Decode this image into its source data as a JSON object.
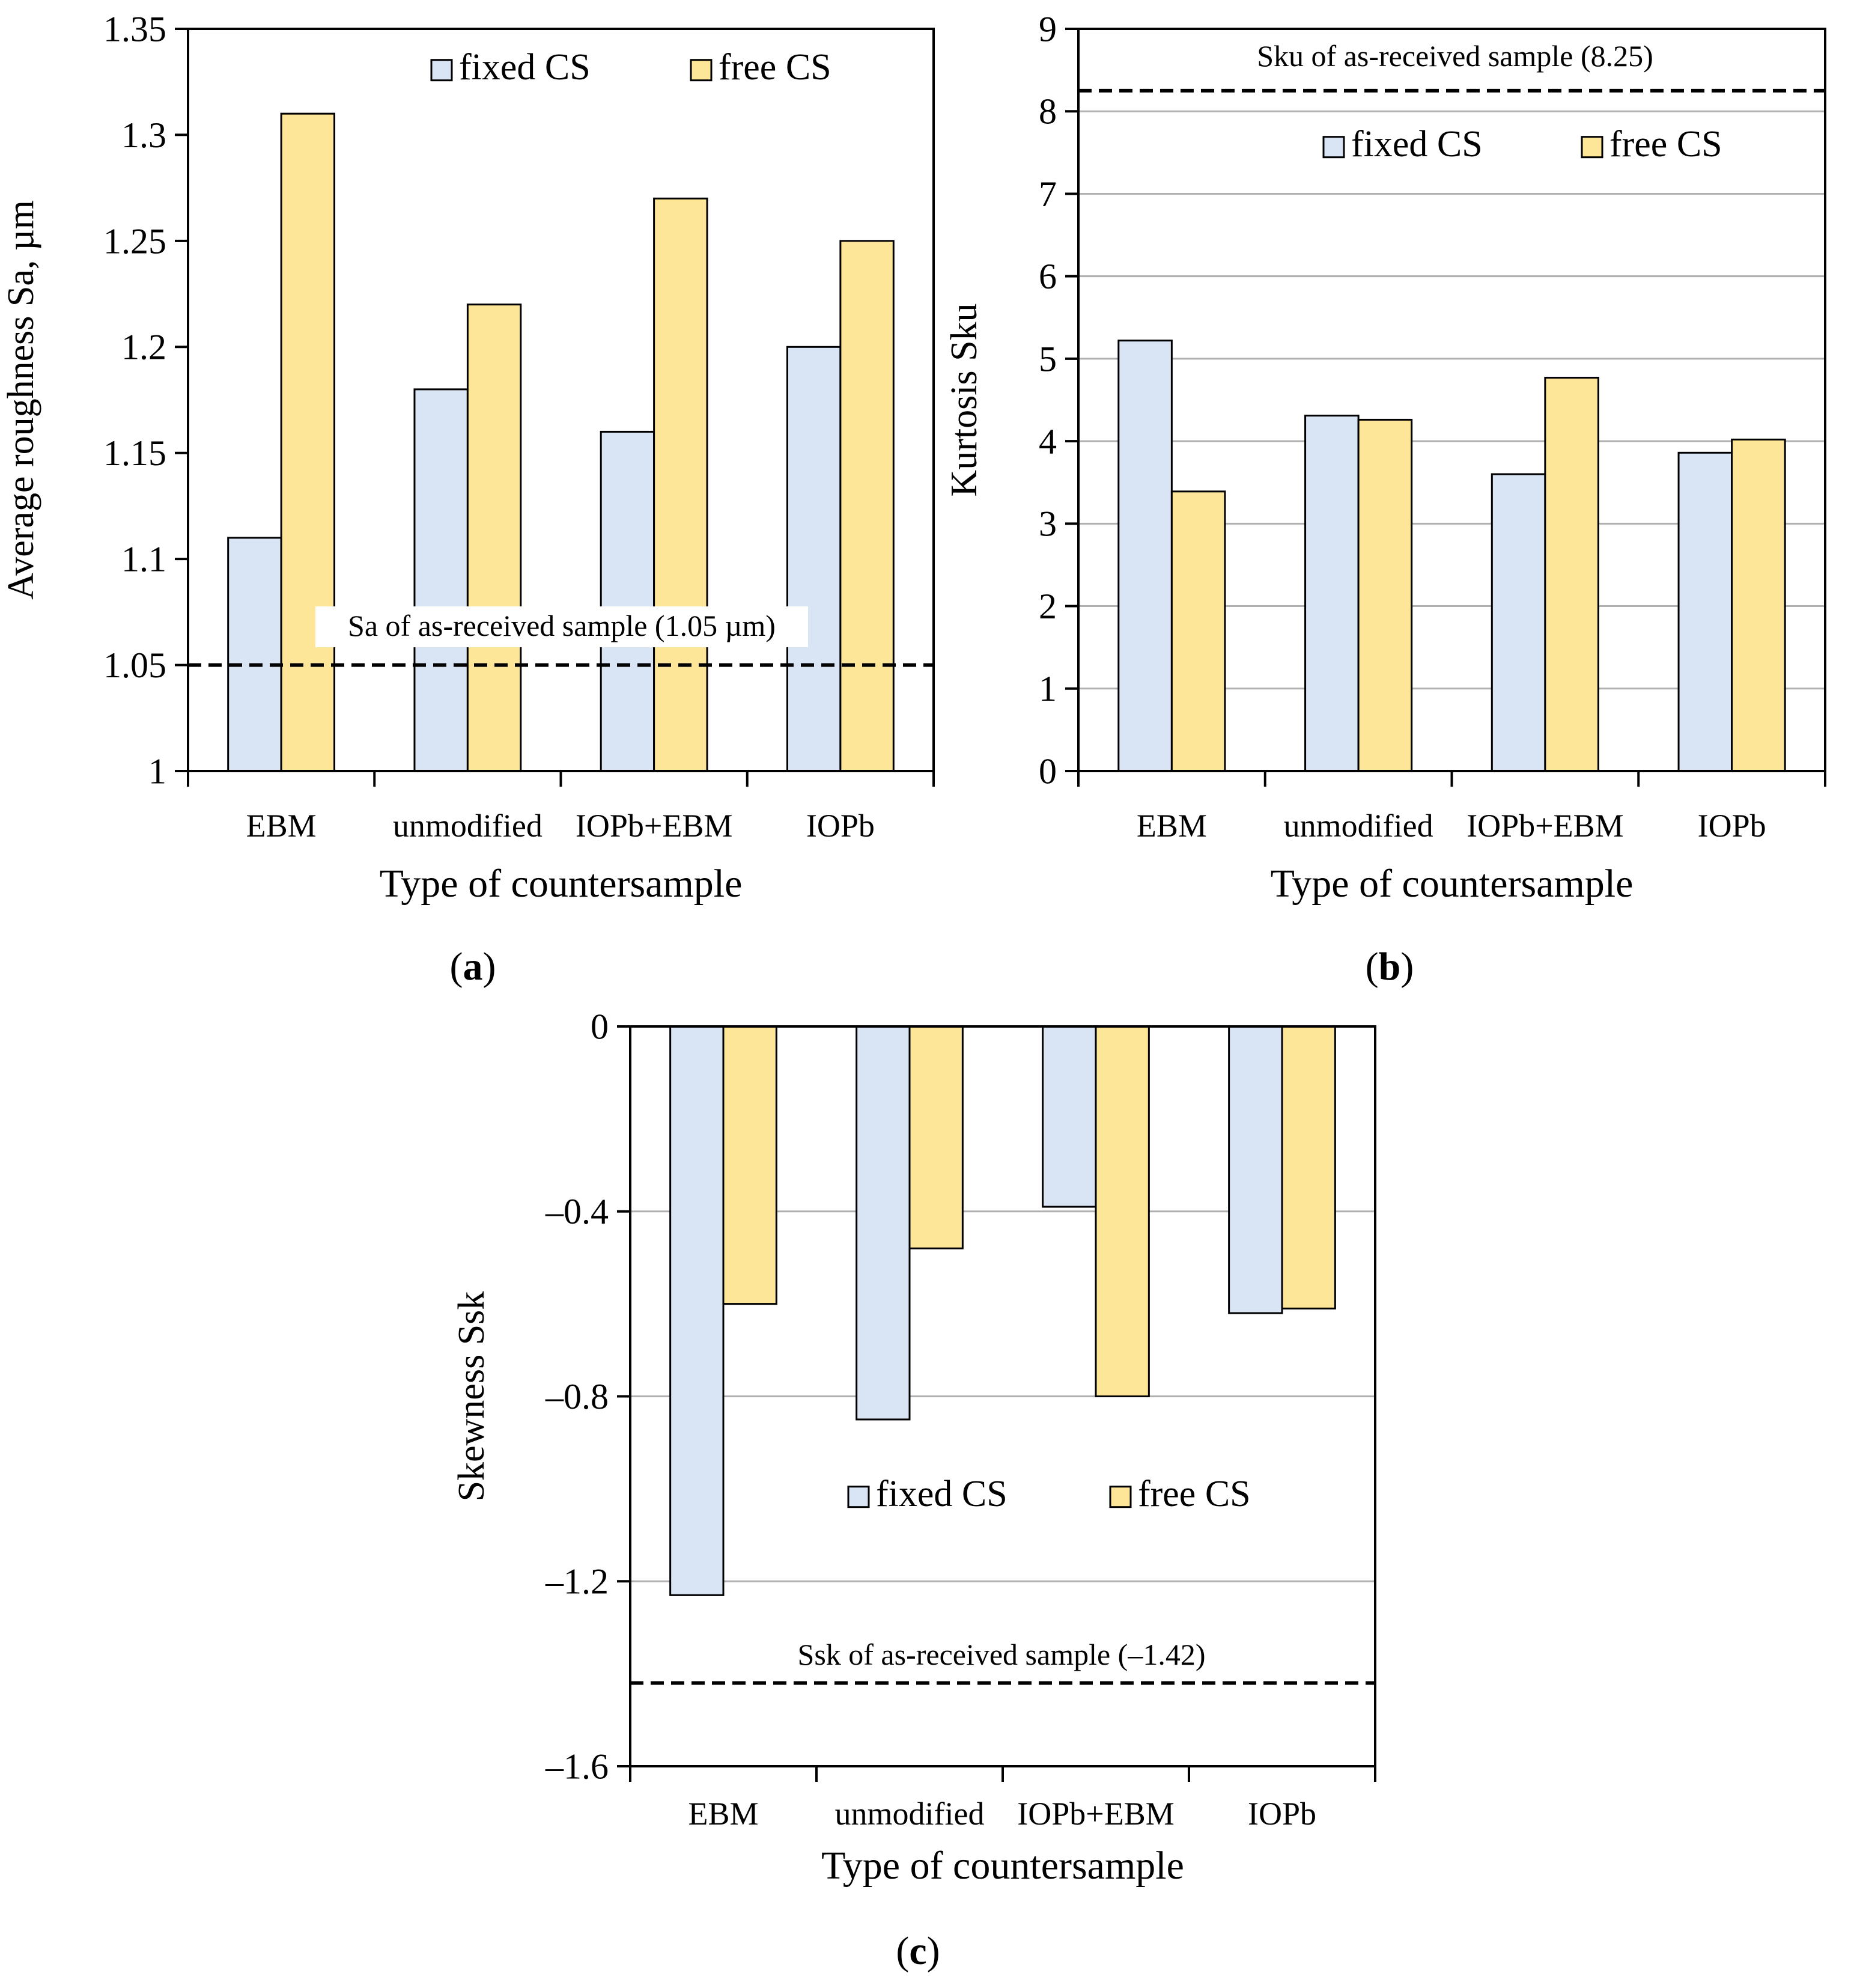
{
  "colors": {
    "fixed": "#d9e4f4",
    "free": "#fde698",
    "stroke": "#000000",
    "grid": "#b0b0b0"
  },
  "chart_data": [
    {
      "id": "a",
      "type": "bar",
      "panel_label": "a",
      "xlabel": "Type of countersample",
      "ylabel": "Average roughness Sa, µm",
      "categories": [
        "EBM",
        "unmodified",
        "IOPb+EBM",
        "IOPb"
      ],
      "series": [
        {
          "name": "fixed CS",
          "values": [
            1.11,
            1.18,
            1.16,
            1.2
          ]
        },
        {
          "name": "free CS",
          "values": [
            1.31,
            1.22,
            1.27,
            1.25
          ]
        }
      ],
      "ylim": [
        1,
        1.35
      ],
      "yticks": [
        1,
        1.05,
        1.1,
        1.15,
        1.2,
        1.25,
        1.3,
        1.35
      ],
      "ytick_labels": [
        "1",
        "1.05",
        "1.1",
        "1.15",
        "1.2",
        "1.25",
        "1.3",
        "1.35"
      ],
      "grid": false,
      "legend_position": "top-right",
      "reference_line": {
        "value": 1.05,
        "label": "Sa of as-received sample (1.05 µm)"
      }
    },
    {
      "id": "b",
      "type": "bar",
      "panel_label": "b",
      "xlabel": "Type of countersample",
      "ylabel": "Kurtosis Sku",
      "categories": [
        "EBM",
        "unmodified",
        "IOPb+EBM",
        "IOPb"
      ],
      "series": [
        {
          "name": "fixed CS",
          "values": [
            5.22,
            4.31,
            3.6,
            3.86
          ]
        },
        {
          "name": "free CS",
          "values": [
            3.39,
            4.26,
            4.77,
            4.02
          ]
        }
      ],
      "ylim": [
        0,
        9
      ],
      "yticks": [
        0,
        1,
        2,
        3,
        4,
        5,
        6,
        7,
        8,
        9
      ],
      "ytick_labels": [
        "0",
        "1",
        "2",
        "3",
        "4",
        "5",
        "6",
        "7",
        "8",
        "9"
      ],
      "grid": true,
      "legend_position": "top-right",
      "reference_line": {
        "value": 8.25,
        "label": "Sku of as-received sample (8.25)"
      }
    },
    {
      "id": "c",
      "type": "bar",
      "panel_label": "c",
      "xlabel": "Type of countersample",
      "ylabel": "Skewness Ssk",
      "categories": [
        "EBM",
        "unmodified",
        "IOPb+EBM",
        "IOPb"
      ],
      "series": [
        {
          "name": "fixed CS",
          "values": [
            -1.23,
            -0.85,
            -0.39,
            -0.62
          ]
        },
        {
          "name": "free CS",
          "values": [
            -0.6,
            -0.48,
            -0.8,
            -0.61
          ]
        }
      ],
      "ylim": [
        -1.6,
        0
      ],
      "yticks": [
        0,
        -0.4,
        -0.8,
        -1.2,
        -1.6
      ],
      "ytick_labels": [
        "0",
        "‒0.4",
        "‒0.8",
        "‒1.2",
        "‒1.6"
      ],
      "grid": true,
      "legend_position": "center-right",
      "reference_line": {
        "value": -1.42,
        "label": "Ssk of as-received sample (‒1.42)"
      }
    }
  ]
}
